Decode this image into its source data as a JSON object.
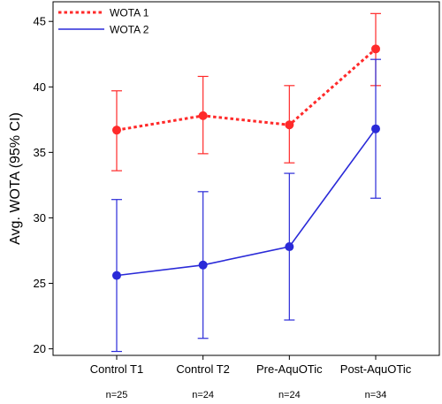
{
  "chart_data": {
    "type": "line",
    "title": "",
    "xlabel": "",
    "ylabel": "Avg. WOTA (95% CI)",
    "ylim": [
      19.5,
      46.5
    ],
    "yticks": [
      20,
      25,
      30,
      35,
      40,
      45
    ],
    "grid": false,
    "legend_position": "top-left",
    "categories": [
      "Control T1",
      "Control T2",
      "Pre-AquOTic",
      "Post-AquOTic"
    ],
    "sample_sizes": [
      "n=25",
      "n=24",
      "n=24",
      "n=34"
    ],
    "series": [
      {
        "name": "WOTA 1",
        "color": "#ff2a2a",
        "line_style": "dotted",
        "values": [
          36.7,
          37.8,
          37.1,
          42.9
        ],
        "ci_low": [
          33.6,
          34.9,
          34.2,
          40.1
        ],
        "ci_high": [
          39.7,
          40.8,
          40.1,
          45.6
        ]
      },
      {
        "name": "WOTA 2",
        "color": "#2a2ad8",
        "line_style": "solid",
        "values": [
          25.6,
          26.4,
          27.8,
          36.8
        ],
        "ci_low": [
          19.8,
          20.8,
          22.2,
          31.5
        ],
        "ci_high": [
          31.4,
          32.0,
          33.4,
          42.1
        ]
      }
    ]
  }
}
